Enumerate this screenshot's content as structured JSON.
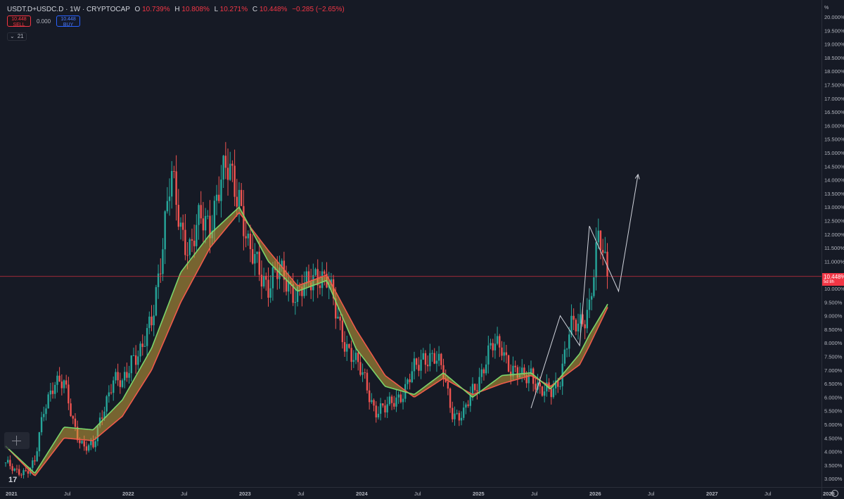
{
  "header": {
    "symbol": "USDT.D+USDC.D · 1W · CRYPTOCAP",
    "open_label": "O",
    "open": "10.739%",
    "high_label": "H",
    "high": "10.808%",
    "low_label": "L",
    "low": "10.271%",
    "close_label": "C",
    "close": "10.448%",
    "change": "−0.285 (−2.65%)"
  },
  "trade": {
    "sell_price": "10.448",
    "sell_label": "SELL",
    "spread": "0.000",
    "buy_price": "10.448",
    "buy_label": "BUY"
  },
  "indicator": {
    "collapse_icon": "chevron-down-icon",
    "count": "21"
  },
  "price_axis": {
    "unit": "%",
    "ticks": [
      "20.000%",
      "19.500%",
      "19.000%",
      "18.500%",
      "18.000%",
      "17.500%",
      "17.000%",
      "16.500%",
      "16.000%",
      "15.500%",
      "15.000%",
      "14.500%",
      "14.000%",
      "13.500%",
      "13.000%",
      "12.500%",
      "12.000%",
      "11.500%",
      "11.000%",
      "10.500%",
      "10.000%",
      "9.500%",
      "9.000%",
      "8.500%",
      "8.000%",
      "7.500%",
      "7.000%",
      "6.500%",
      "6.000%",
      "5.500%",
      "5.000%",
      "4.500%",
      "4.000%",
      "3.500%",
      "3.000%"
    ]
  },
  "current_price": {
    "value": "10.448%",
    "countdown": "5d 8h"
  },
  "time_axis": {
    "labels": [
      "2021",
      "Jul",
      "2022",
      "Jul",
      "2023",
      "Jul",
      "2024",
      "Jul",
      "2025",
      "Jul",
      "2026",
      "Jul",
      "2027",
      "Jul",
      "2028"
    ]
  },
  "colors": {
    "background": "#161a25",
    "up": "#26a69a",
    "down": "#ef5350",
    "ema_fast": "#7bd66b",
    "ema_slow": "#f05a4a",
    "price_line": "#f23645",
    "projection": "#d1d4dc"
  },
  "chart_data": {
    "type": "candlestick",
    "timeframe": "1W",
    "ylim": [
      2.8,
      20.3
    ],
    "x_range": [
      "2021-01",
      "2028-01"
    ],
    "close_path": [
      [
        "2021-01",
        3.6
      ],
      [
        "2021-02",
        3.2
      ],
      [
        "2021-03",
        3.3
      ],
      [
        "2021-04",
        3.6
      ],
      [
        "2021-05",
        5.6
      ],
      [
        "2021-06",
        6.7
      ],
      [
        "2021-07",
        6.4
      ],
      [
        "2021-08",
        5.0
      ],
      [
        "2021-09",
        4.2
      ],
      [
        "2021-10",
        4.1
      ],
      [
        "2021-11",
        5.6
      ],
      [
        "2021-12",
        6.6
      ],
      [
        "2022-01",
        6.4
      ],
      [
        "2022-02",
        7.6
      ],
      [
        "2022-03",
        7.6
      ],
      [
        "2022-04",
        8.8
      ],
      [
        "2022-05",
        11.4
      ],
      [
        "2022-06",
        14.0
      ],
      [
        "2022-07",
        12.3
      ],
      [
        "2022-08",
        11.5
      ],
      [
        "2022-09",
        12.4
      ],
      [
        "2022-10",
        12.5
      ],
      [
        "2022-11",
        13.8
      ],
      [
        "2022-12",
        14.3
      ],
      [
        "2023-01",
        13.6
      ],
      [
        "2023-02",
        11.2
      ],
      [
        "2023-03",
        10.8
      ],
      [
        "2023-04",
        10.2
      ],
      [
        "2023-05",
        10.5
      ],
      [
        "2023-06",
        10.3
      ],
      [
        "2023-07",
        9.8
      ],
      [
        "2023-08",
        10.0
      ],
      [
        "2023-09",
        10.7
      ],
      [
        "2023-10",
        10.3
      ],
      [
        "2023-11",
        9.0
      ],
      [
        "2023-12",
        8.0
      ],
      [
        "2024-01",
        7.2
      ],
      [
        "2024-02",
        6.6
      ],
      [
        "2024-03",
        5.5
      ],
      [
        "2024-04",
        5.5
      ],
      [
        "2024-05",
        6.0
      ],
      [
        "2024-06",
        6.2
      ],
      [
        "2024-07",
        7.0
      ],
      [
        "2024-08",
        7.6
      ],
      [
        "2024-09",
        7.4
      ],
      [
        "2024-10",
        6.9
      ],
      [
        "2024-11",
        5.4
      ],
      [
        "2024-12",
        5.2
      ],
      [
        "2025-01",
        6.3
      ],
      [
        "2025-02",
        7.0
      ],
      [
        "2025-03",
        7.8
      ],
      [
        "2025-04",
        8.0
      ],
      [
        "2025-05",
        6.9
      ],
      [
        "2025-06",
        6.7
      ],
      [
        "2025-07",
        7.0
      ],
      [
        "2025-08",
        6.1
      ],
      [
        "2025-09",
        6.2
      ],
      [
        "2025-10",
        6.8
      ],
      [
        "2025-11",
        8.4
      ],
      [
        "2025-12",
        8.8
      ],
      [
        "2026-01",
        9.4
      ],
      [
        "2026-02",
        11.8
      ],
      [
        "2026-03",
        10.45
      ]
    ],
    "ema_fast": [
      [
        "2021-01",
        4.2
      ],
      [
        "2021-04",
        3.2
      ],
      [
        "2021-07",
        4.9
      ],
      [
        "2021-10",
        4.8
      ],
      [
        "2022-01",
        5.9
      ],
      [
        "2022-04",
        7.8
      ],
      [
        "2022-07",
        10.6
      ],
      [
        "2022-10",
        12.0
      ],
      [
        "2023-01",
        13.0
      ],
      [
        "2023-04",
        11.0
      ],
      [
        "2023-07",
        9.9
      ],
      [
        "2023-10",
        10.3
      ],
      [
        "2024-01",
        7.8
      ],
      [
        "2024-04",
        6.4
      ],
      [
        "2024-07",
        6.1
      ],
      [
        "2024-10",
        6.9
      ],
      [
        "2025-01",
        6.0
      ],
      [
        "2025-04",
        6.8
      ],
      [
        "2025-07",
        6.9
      ],
      [
        "2025-09",
        6.3
      ],
      [
        "2025-12",
        7.6
      ],
      [
        "2026-01",
        8.3
      ],
      [
        "2026-03",
        9.5
      ]
    ],
    "ema_slow": [
      [
        "2021-01",
        4.2
      ],
      [
        "2021-04",
        3.1
      ],
      [
        "2021-07",
        4.5
      ],
      [
        "2021-10",
        4.4
      ],
      [
        "2022-01",
        5.3
      ],
      [
        "2022-04",
        7.0
      ],
      [
        "2022-07",
        9.5
      ],
      [
        "2022-10",
        11.5
      ],
      [
        "2023-01",
        12.8
      ],
      [
        "2023-04",
        11.4
      ],
      [
        "2023-07",
        10.1
      ],
      [
        "2023-10",
        10.5
      ],
      [
        "2024-01",
        8.5
      ],
      [
        "2024-04",
        6.8
      ],
      [
        "2024-07",
        6.0
      ],
      [
        "2024-10",
        6.7
      ],
      [
        "2025-01",
        6.1
      ],
      [
        "2025-04",
        6.5
      ],
      [
        "2025-07",
        6.8
      ],
      [
        "2025-09",
        6.4
      ],
      [
        "2025-12",
        7.2
      ],
      [
        "2026-01",
        7.9
      ],
      [
        "2026-03",
        9.4
      ]
    ],
    "projection": [
      [
        "2025-07",
        5.6
      ],
      [
        "2025-10",
        9.0
      ],
      [
        "2025-12",
        7.9
      ],
      [
        "2026-01",
        12.3
      ],
      [
        "2026-04",
        9.9
      ],
      [
        "2026-06",
        14.2
      ]
    ],
    "current_price": 10.448
  }
}
